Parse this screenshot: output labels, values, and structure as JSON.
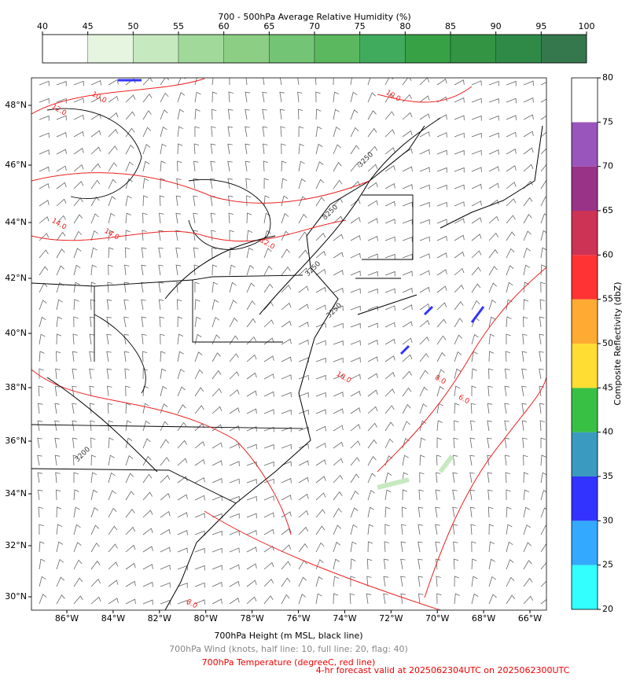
{
  "rh_colorbar": {
    "label": "700 - 500hPa Average Relative Humidity (%)",
    "ticks": [
      40,
      45,
      50,
      55,
      60,
      65,
      70,
      75,
      80,
      85,
      90,
      95,
      100
    ],
    "colors": [
      "#ffffff",
      "#e5f5e0",
      "#c7e9c0",
      "#a1d99b",
      "#8ccf84",
      "#74c476",
      "#5bb85e",
      "#41ab5d",
      "#37a145",
      "#339444",
      "#2f8a48",
      "#35784d"
    ]
  },
  "reflectivity_colorbar": {
    "label": "Composite Reflectivity (dbZ)",
    "ticks": [
      20,
      25,
      30,
      35,
      40,
      45,
      50,
      55,
      60,
      65,
      70,
      75,
      80
    ],
    "colors": [
      "#33ffff",
      "#33aaff",
      "#3333ff",
      "#3a9abf",
      "#38c044",
      "#ffdd33",
      "#ffaa33",
      "#ff3333",
      "#cc3355",
      "#993388",
      "#9955bb",
      "#ffffff"
    ]
  },
  "map": {
    "lon_labels": [
      "86°W",
      "84°W",
      "82°W",
      "80°W",
      "78°W",
      "76°W",
      "74°W",
      "72°W",
      "70°W",
      "68°W",
      "66°W"
    ],
    "lat_labels": [
      "48°N",
      "46°N",
      "44°N",
      "42°N",
      "40°N",
      "38°N",
      "36°N",
      "34°N",
      "32°N",
      "30°N"
    ],
    "contour_labels": [
      "10.0",
      "12.0",
      "14.0",
      "14.0",
      "12.0",
      "10.0",
      "8.0",
      "6.0",
      "10.0",
      "8.0",
      "3250",
      "3250",
      "3250",
      "3250",
      "3200"
    ]
  },
  "captions": {
    "height": "700hPa Height (m MSL, black line)",
    "wind": "700hPa Wind (knots, half line: 10, full line: 20, flag: 40)",
    "temperature": "700hPa Temperature (degreeC, red line)",
    "valid": "4-hr forecast valid at 2025062304UTC on 2025062300UTC"
  }
}
